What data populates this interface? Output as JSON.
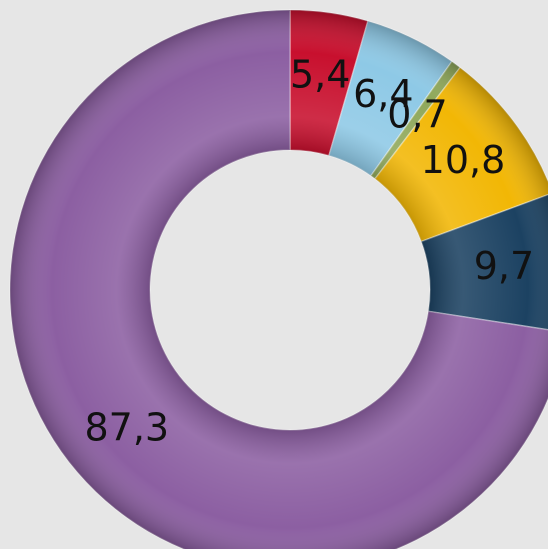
{
  "chart_data": {
    "type": "donut",
    "values": [
      5.4,
      6.4,
      0.7,
      10.8,
      9.7,
      87.3
    ],
    "value_labels": [
      "5,4",
      "6,4",
      "0,7",
      "10,8",
      "9,7",
      "87,3"
    ],
    "colors": [
      "#c8102e",
      "#8ec9e6",
      "#8fa85a",
      "#f2b705",
      "#1c4262",
      "#8c5fa2"
    ]
  }
}
